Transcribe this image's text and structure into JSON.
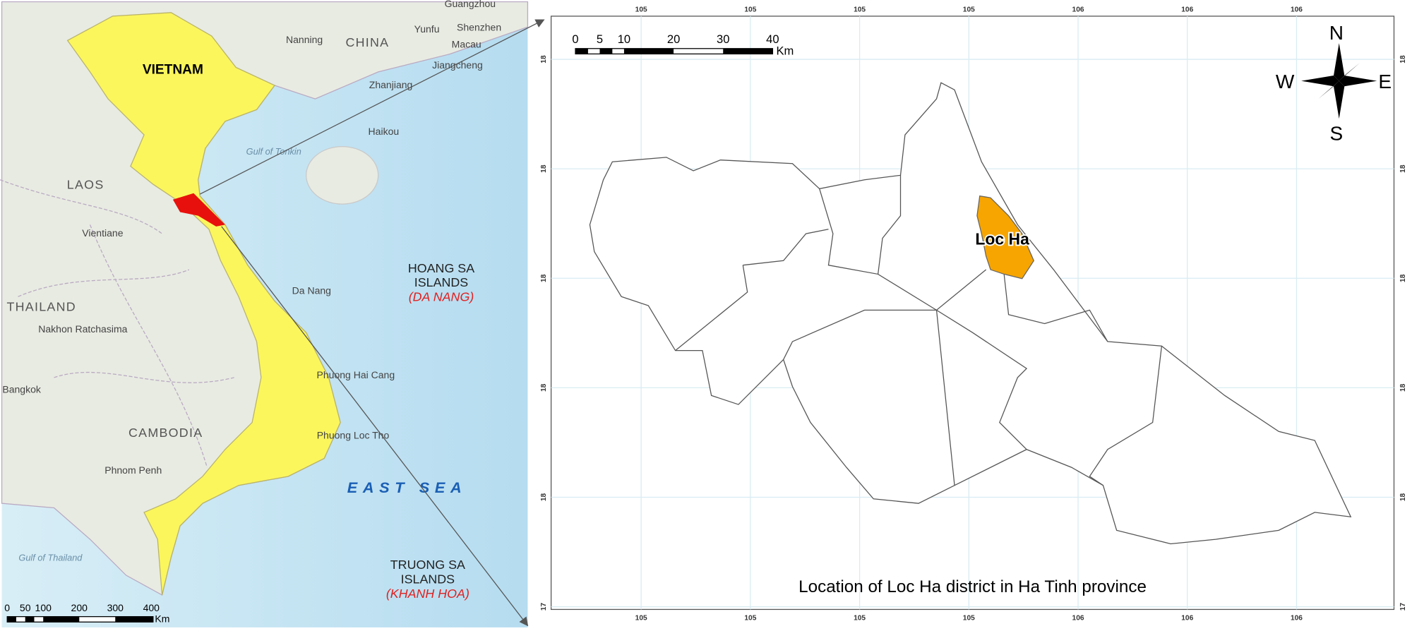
{
  "left_map": {
    "country_labels": [
      "VIETNAM",
      "CHINA",
      "LAOS",
      "THAILAND",
      "CAMBODIA"
    ],
    "city_labels": [
      "Nanning",
      "Yunfu",
      "Guangzhou",
      "Shenzhen",
      "Macau",
      "Jiangcheng",
      "Zhanjiang",
      "Haikou",
      "Vientiane",
      "Da Nang",
      "Nakhon Ratchasima",
      "Bangkok",
      "Phnom Penh",
      "Phuong Hai Cang",
      "Phuong Loc Tho"
    ],
    "water_labels": [
      "Gulf of Tonkin",
      "Gulf of Thailand",
      "EAST SEA"
    ],
    "islands": [
      {
        "name": "HOANG SA ISLANDS",
        "admin": "(DA NANG)"
      },
      {
        "name": "TRUONG SA ISLANDS",
        "admin": "(KHANH HOA)"
      }
    ],
    "scale_bar": {
      "ticks": [
        "0",
        "50",
        "100",
        "200",
        "300",
        "400"
      ],
      "unit": "Km"
    }
  },
  "right_map": {
    "district_label": "Loc Ha",
    "caption": "Location of Loc Ha district in Ha Tinh province",
    "scale_bar": {
      "ticks": [
        "0",
        "5",
        "10",
        "20",
        "30",
        "40"
      ],
      "unit": "Km"
    },
    "compass": {
      "n": "N",
      "s": "S",
      "e": "E",
      "w": "W"
    },
    "longitude_ticks": [
      "105",
      "105",
      "105",
      "105",
      "106",
      "106",
      "106"
    ],
    "latitude_ticks": [
      "18",
      "18",
      "18",
      "18",
      "18",
      "17"
    ]
  }
}
